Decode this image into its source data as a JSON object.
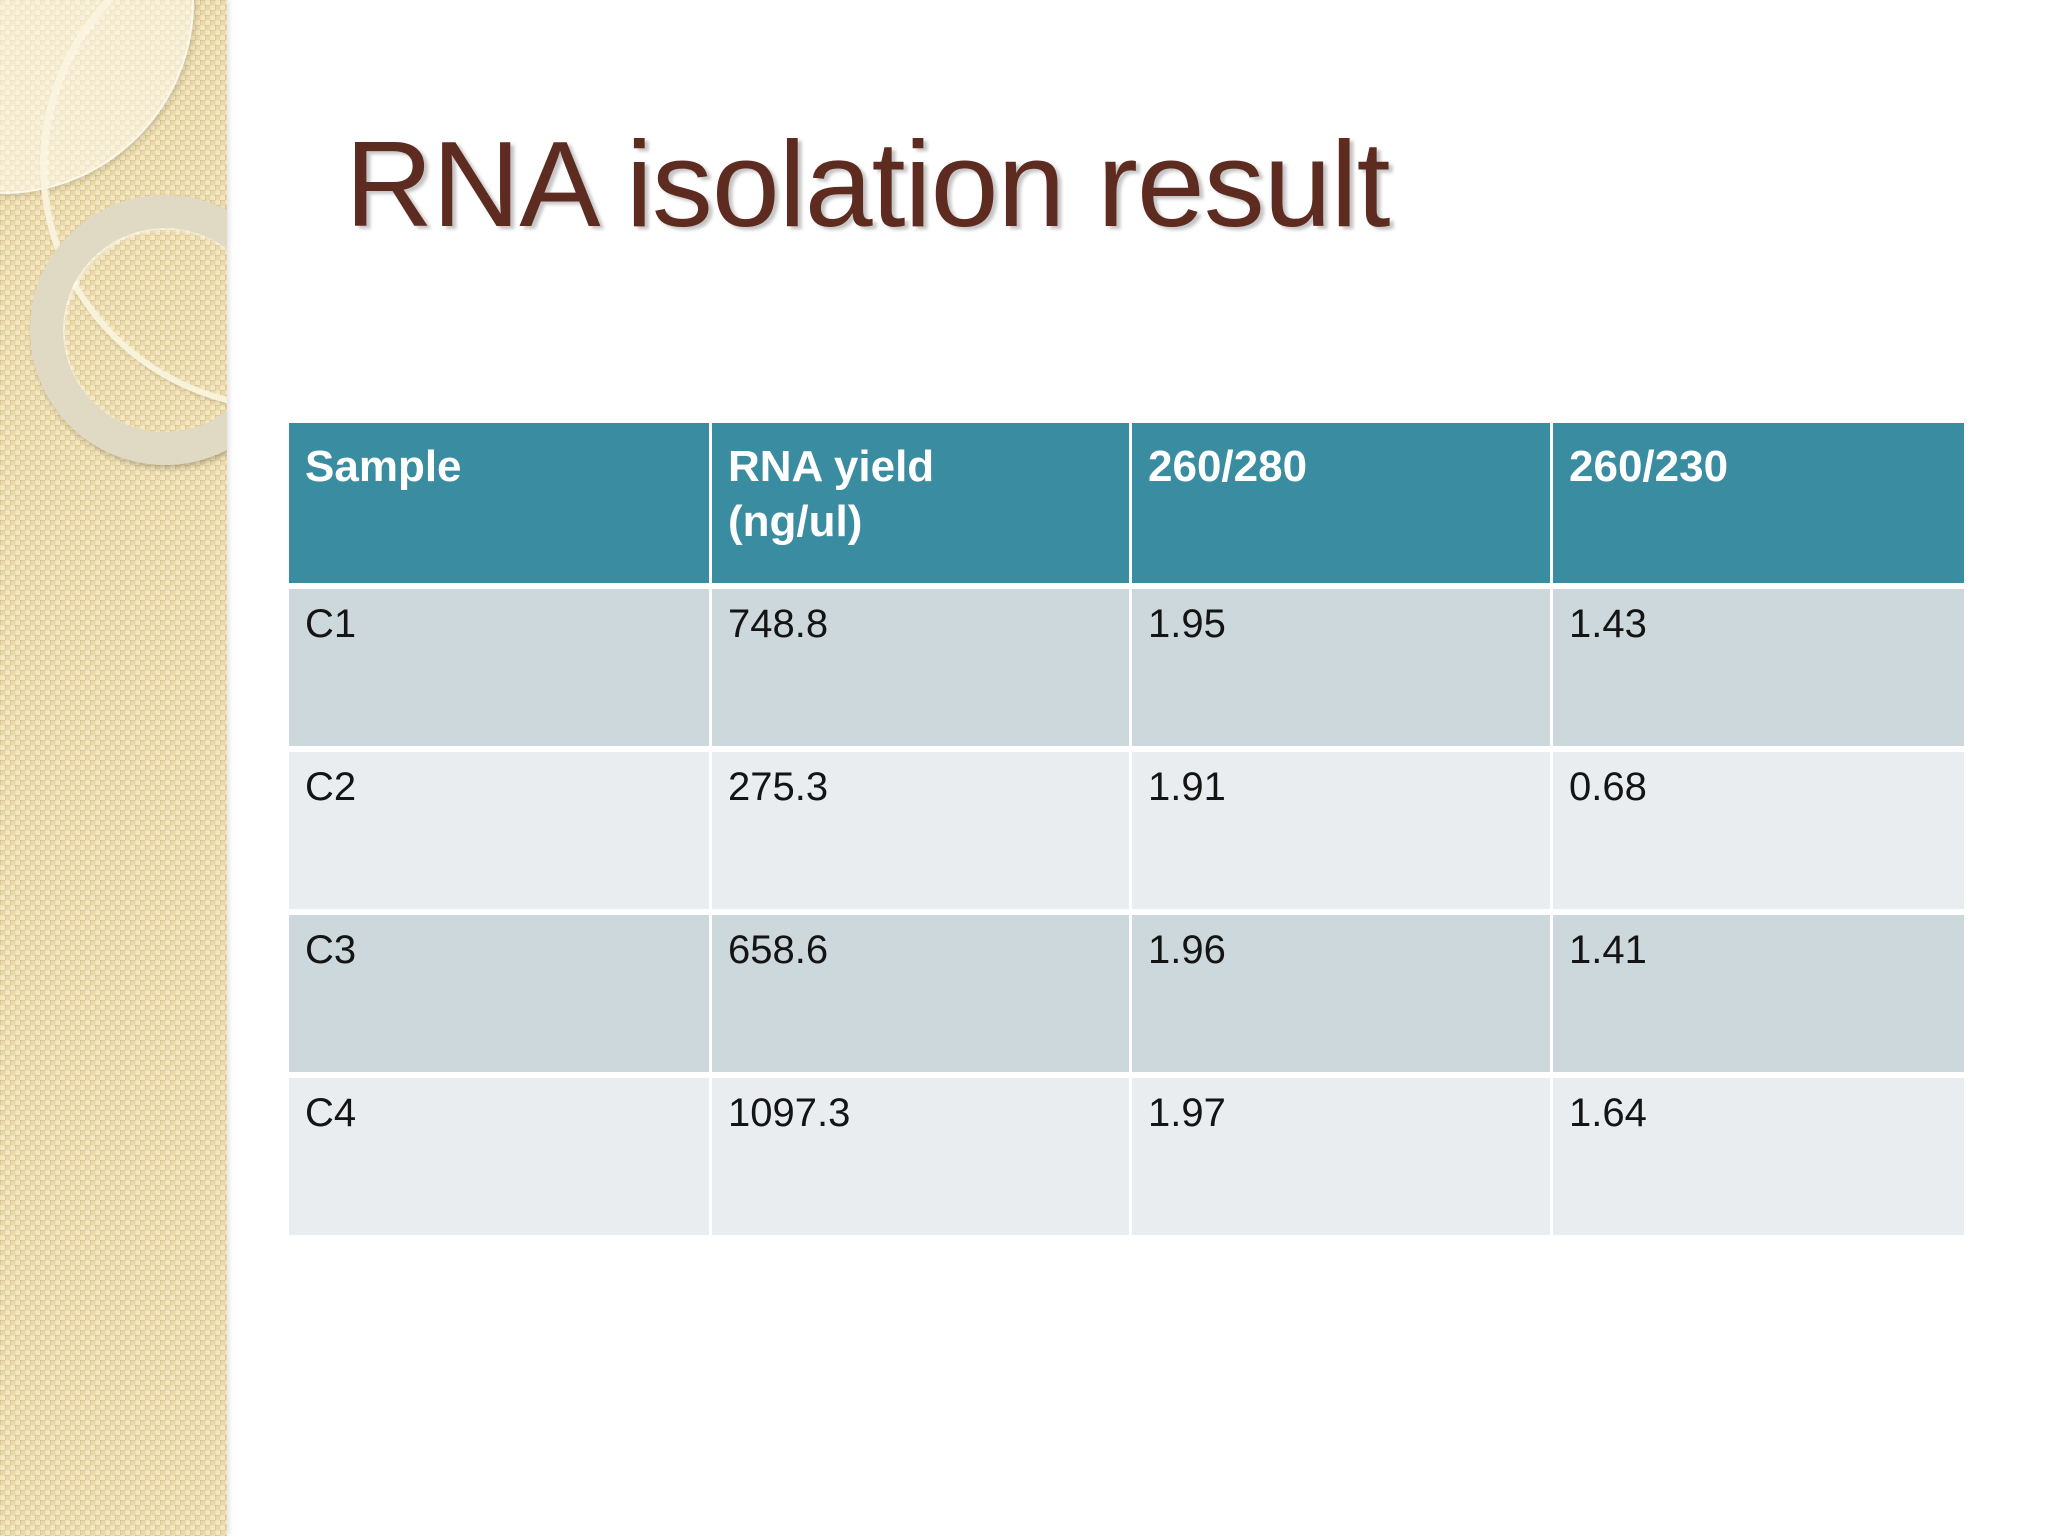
{
  "slide": {
    "title": "RNA isolation result"
  },
  "table": {
    "columns": [
      "Sample",
      "RNA yield\n(ng/ul)",
      "260/280",
      "260/230"
    ],
    "rows": [
      [
        "C1",
        "748.8",
        "1.95",
        "1.43"
      ],
      [
        "C2",
        "275.3",
        "1.91",
        "0.68"
      ],
      [
        "C3",
        "658.6",
        "1.96",
        "1.41"
      ],
      [
        "C4",
        "1097.3",
        "1.97",
        "1.64"
      ]
    ]
  },
  "chart_data": {
    "type": "table",
    "title": "RNA isolation result",
    "columns": [
      "Sample",
      "RNA yield (ng/ul)",
      "260/280",
      "260/230"
    ],
    "rows": [
      [
        "C1",
        748.8,
        1.95,
        1.43
      ],
      [
        "C2",
        275.3,
        1.91,
        0.68
      ],
      [
        "C3",
        658.6,
        1.96,
        1.41
      ],
      [
        "C4",
        1097.3,
        1.97,
        1.64
      ]
    ]
  },
  "colors": {
    "header_teal": "#3a8ca0",
    "row_band_dark": "#cdd8dc",
    "row_band_light": "#e9edef",
    "title_maroon": "#5e2b20",
    "sidebar_tan": "#ead8a6",
    "background": "#ffffff"
  }
}
